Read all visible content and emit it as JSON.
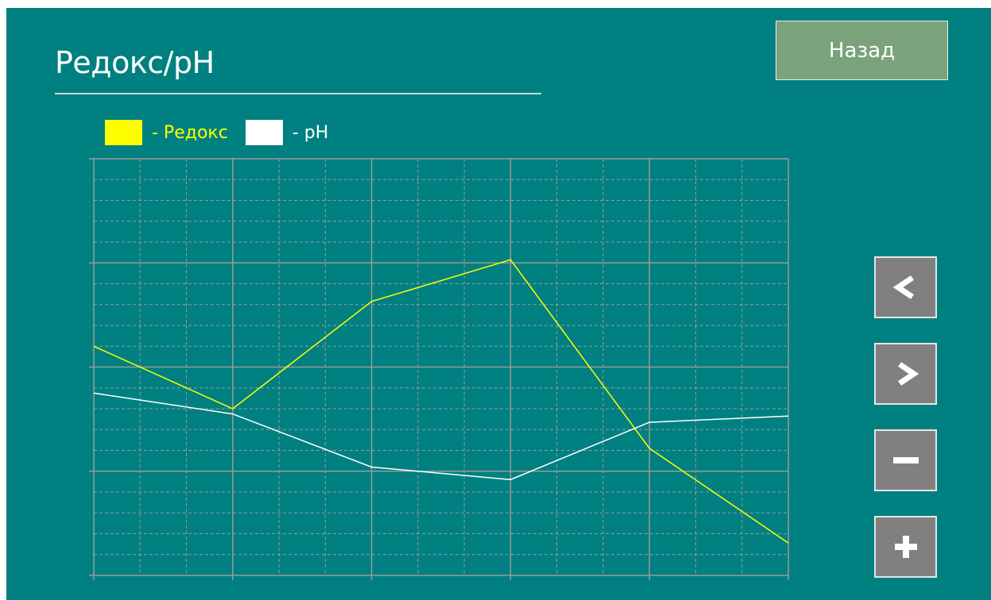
{
  "header": {
    "title": "Редокс/pH",
    "back_label": "Назад"
  },
  "legend": [
    {
      "swatch_color": "#ffff00",
      "label": "- Редокс",
      "label_color": "#ffff00"
    },
    {
      "swatch_color": "#ffffff",
      "label": "- pH",
      "label_color": "#ffffff"
    }
  ],
  "controls": [
    {
      "name": "scroll-left-button",
      "icon": "chevron-left-icon"
    },
    {
      "name": "scroll-right-button",
      "icon": "chevron-right-icon"
    },
    {
      "name": "zoom-out-button",
      "icon": "minus-icon"
    },
    {
      "name": "zoom-in-button",
      "icon": "plus-icon"
    }
  ],
  "colors": {
    "background": "#008080",
    "grid": "#9a9a9a",
    "redox": "#ffff00",
    "ph": "#ffffff",
    "button": "#808080",
    "back_button": "#7aa37c"
  },
  "chart_data": {
    "type": "line",
    "title": "",
    "xlabel": "",
    "ylabel": "",
    "x": [
      0,
      1,
      2,
      3,
      4,
      5
    ],
    "xlim": [
      0,
      5
    ],
    "ylim": [
      0,
      4
    ],
    "grid": true,
    "legend_position": "top-left",
    "series": [
      {
        "name": "- Редокс",
        "color": "#ffff00",
        "values": [
          2.2,
          1.6,
          2.63,
          3.03,
          1.22,
          0.31
        ]
      },
      {
        "name": "- pH",
        "color": "#ffffff",
        "values": [
          1.75,
          1.55,
          1.04,
          0.92,
          1.47,
          1.53
        ]
      }
    ]
  }
}
